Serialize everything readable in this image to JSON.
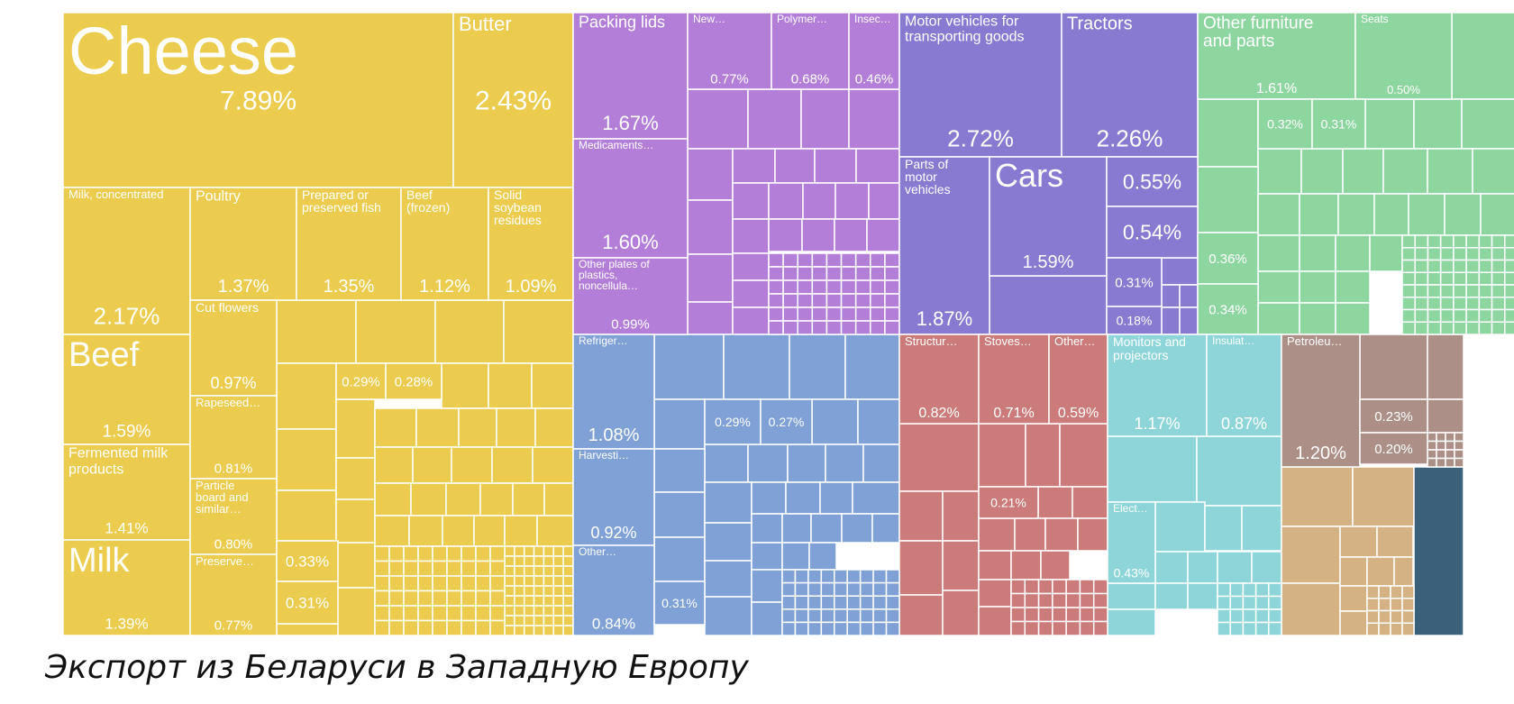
{
  "caption": "Экспорт из Беларуси в Западную Европу",
  "colors": {
    "food": "#ECCC4E",
    "chemicals": "#B37ED8",
    "transport": "#8879D1",
    "furniture": "#8ED6A0",
    "machinery": "#7FA1D5",
    "metals": "#CB7B79",
    "electronics": "#8ED5D9",
    "mineral": "#AC8F87",
    "textiles": "#D4B283",
    "other": "#3B6079"
  },
  "chart_data": {
    "type": "treemap",
    "title": "Экспорт из Беларуси в Западную Европу",
    "unit": "% of exports",
    "items": [
      {
        "label": "Cheese",
        "value": "7.89%",
        "group": "food"
      },
      {
        "label": "Butter",
        "value": "2.43%",
        "group": "food"
      },
      {
        "label": "Milk, concentrated",
        "value": "2.17%",
        "group": "food"
      },
      {
        "label": "Poultry",
        "value": "1.37%",
        "group": "food"
      },
      {
        "label": "Prepared or preserved fish",
        "value": "1.35%",
        "group": "food"
      },
      {
        "label": "Beef (frozen)",
        "value": "1.12%",
        "group": "food"
      },
      {
        "label": "Solid soybean residues",
        "value": "1.09%",
        "group": "food"
      },
      {
        "label": "Beef",
        "value": "1.59%",
        "group": "food"
      },
      {
        "label": "Fermented milk products",
        "value": "1.41%",
        "group": "food"
      },
      {
        "label": "Milk",
        "value": "1.39%",
        "group": "food"
      },
      {
        "label": "Cut flowers",
        "value": "0.97%",
        "group": "food"
      },
      {
        "label": "Rapeseed…",
        "value": "0.81%",
        "group": "food"
      },
      {
        "label": "Particle board and similar…",
        "value": "0.80%",
        "group": "food"
      },
      {
        "label": "Preserve…",
        "value": "0.77%",
        "group": "food"
      },
      {
        "label": "",
        "value": "0.29%",
        "group": "food"
      },
      {
        "label": "",
        "value": "0.28%",
        "group": "food"
      },
      {
        "label": "",
        "value": "0.33%",
        "group": "food"
      },
      {
        "label": "",
        "value": "0.31%",
        "group": "food"
      },
      {
        "label": "Packing lids",
        "value": "1.67%",
        "group": "chemicals"
      },
      {
        "label": "New…",
        "value": "0.77%",
        "group": "chemicals"
      },
      {
        "label": "Polymer…",
        "value": "0.68%",
        "group": "chemicals"
      },
      {
        "label": "Insec…",
        "value": "0.46%",
        "group": "chemicals"
      },
      {
        "label": "Medicaments…",
        "value": "1.60%",
        "group": "chemicals"
      },
      {
        "label": "Other plates of plastics, noncellula…",
        "value": "0.99%",
        "group": "chemicals"
      },
      {
        "label": "Motor vehicles for transporting goods",
        "value": "2.72%",
        "group": "transport"
      },
      {
        "label": "Tractors",
        "value": "2.26%",
        "group": "transport"
      },
      {
        "label": "Parts of motor vehicles",
        "value": "1.87%",
        "group": "transport"
      },
      {
        "label": "Cars",
        "value": "1.59%",
        "group": "transport"
      },
      {
        "label": "",
        "value": "0.55%",
        "group": "transport"
      },
      {
        "label": "",
        "value": "0.54%",
        "group": "transport"
      },
      {
        "label": "",
        "value": "0.31%",
        "group": "transport"
      },
      {
        "label": "",
        "value": "0.18%",
        "group": "transport"
      },
      {
        "label": "Other furniture and parts",
        "value": "1.61%",
        "group": "furniture"
      },
      {
        "label": "Seats",
        "value": "0.50%",
        "group": "furniture"
      },
      {
        "label": "",
        "value": "0.32%",
        "group": "furniture"
      },
      {
        "label": "",
        "value": "0.31%",
        "group": "furniture"
      },
      {
        "label": "",
        "value": "0.36%",
        "group": "furniture"
      },
      {
        "label": "",
        "value": "0.34%",
        "group": "furniture"
      },
      {
        "label": "Refriger…",
        "value": "1.08%",
        "group": "machinery"
      },
      {
        "label": "Harvesti…",
        "value": "0.92%",
        "group": "machinery"
      },
      {
        "label": "Other…",
        "value": "0.84%",
        "group": "machinery"
      },
      {
        "label": "",
        "value": "0.29%",
        "group": "machinery"
      },
      {
        "label": "",
        "value": "0.27%",
        "group": "machinery"
      },
      {
        "label": "",
        "value": "0.31%",
        "group": "machinery"
      },
      {
        "label": "Structur…",
        "value": "0.82%",
        "group": "metals"
      },
      {
        "label": "Stoves…",
        "value": "0.71%",
        "group": "metals"
      },
      {
        "label": "Other…",
        "value": "0.59%",
        "group": "metals"
      },
      {
        "label": "",
        "value": "0.21%",
        "group": "metals"
      },
      {
        "label": "Monitors and projectors",
        "value": "1.17%",
        "group": "electronics"
      },
      {
        "label": "Insulat…",
        "value": "0.87%",
        "group": "electronics"
      },
      {
        "label": "Elect…",
        "value": "0.43%",
        "group": "electronics"
      },
      {
        "label": "Petroleu…",
        "value": "1.20%",
        "group": "mineral"
      },
      {
        "label": "",
        "value": "0.23%",
        "group": "mineral"
      },
      {
        "label": "",
        "value": "0.20%",
        "group": "mineral"
      }
    ]
  }
}
